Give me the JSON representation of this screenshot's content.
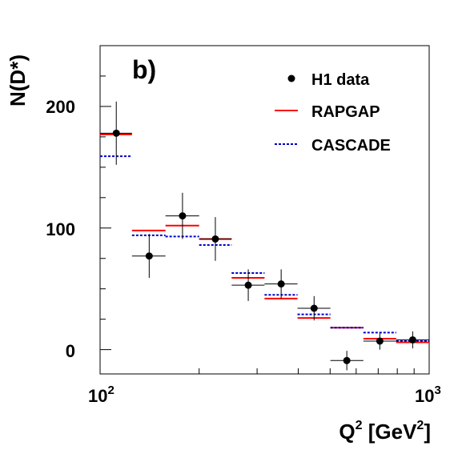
{
  "chart_data": {
    "type": "scatter",
    "panel_label": "b)",
    "xlabel": "Q",
    "xlabel_sup": "2",
    "xlabel_unit_open": " [GeV",
    "xlabel_unit_sup": "2",
    "xlabel_unit_close": "]",
    "ylabel": "N(D*)",
    "xscale": "log",
    "xlim": [
      100,
      1000
    ],
    "ylim": [
      -20,
      250
    ],
    "x_ticks": [
      {
        "base": "10",
        "exp": "2",
        "value": 100
      },
      {
        "base": "10",
        "exp": "3",
        "value": 1000
      }
    ],
    "y_ticks": [
      0,
      100,
      200
    ],
    "grid": false,
    "legend_position": "top-right",
    "legend": [
      {
        "label": "H1 data",
        "style": "marker",
        "color": "#000000"
      },
      {
        "label": "RAPGAP",
        "style": "solid",
        "color": "#ff0000"
      },
      {
        "label": "CASCADE",
        "style": "dotted",
        "color": "#0000cc"
      }
    ],
    "bin_edges": [
      100,
      125,
      158,
      200,
      251,
      316,
      398,
      501,
      631,
      794,
      1000
    ],
    "series": [
      {
        "name": "H1 data",
        "x": [
          112,
          141,
          178,
          224,
          282,
          355,
          447,
          562,
          708,
          891
        ],
        "y": [
          178,
          77,
          110,
          91,
          53,
          54,
          34,
          -9,
          7,
          8
        ],
        "yerr": [
          26,
          18,
          19,
          18,
          13,
          12,
          10,
          8,
          7,
          7
        ]
      },
      {
        "name": "RAPGAP",
        "values": [
          177,
          98,
          102,
          91,
          59,
          42,
          26,
          18,
          9,
          6
        ]
      },
      {
        "name": "CASCADE",
        "values": [
          159,
          94,
          93,
          86,
          63,
          45,
          29,
          18,
          14,
          7
        ]
      }
    ]
  }
}
